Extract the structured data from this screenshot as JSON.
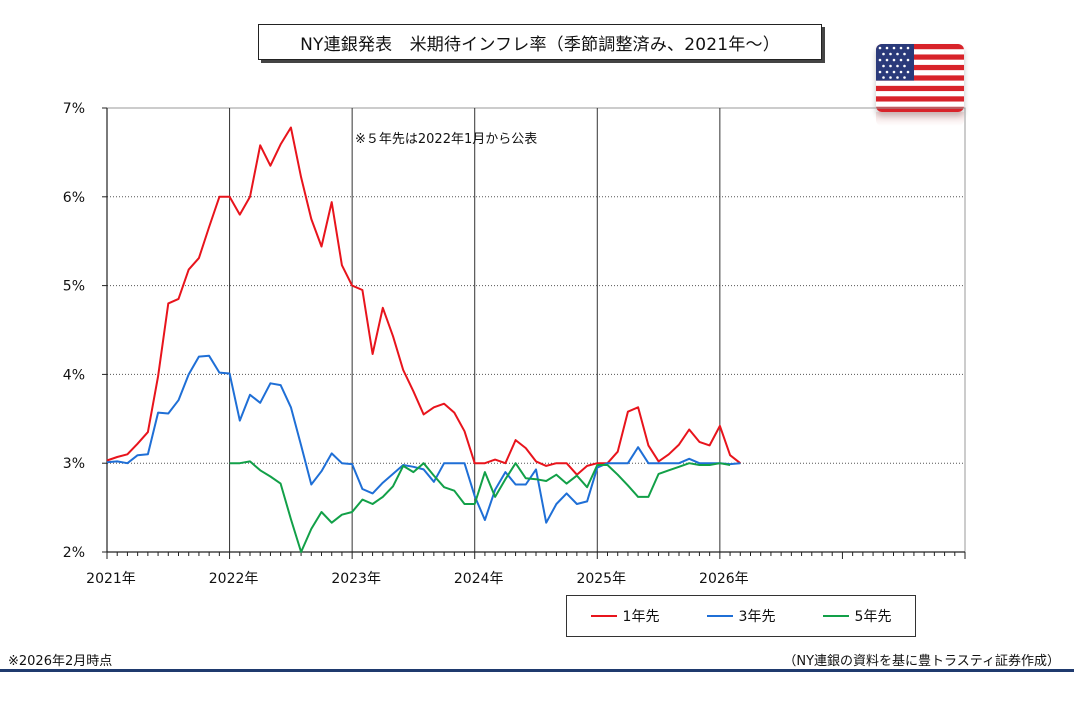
{
  "title": "NY連銀発表　米期待インフレ率（季節調整済み、2021年〜）",
  "note": "※５年先は2022年1月から公表",
  "footer_left": "※2026年2月時点",
  "footer_right": "（NY連銀の資料を基に豊トラスティ証券作成）",
  "flag_icon": "us-flag-icon",
  "chart_data": {
    "type": "line",
    "ylim": [
      2,
      7
    ],
    "y_ticks": [
      "2%",
      "3%",
      "4%",
      "5%",
      "6%",
      "7%"
    ],
    "x_range_months": [
      "2021-01",
      "2027-12"
    ],
    "x_ticks": [
      "2021年",
      "2022年",
      "2023年",
      "2024年",
      "2025年",
      "2026年"
    ],
    "grid": "horizontal dotted at each percent, vertical solid at each year",
    "legend_position": "bottom-right",
    "series": [
      {
        "name": "1年先",
        "color": "#e8141c",
        "start": "2021-01",
        "values": [
          3.03,
          3.07,
          3.1,
          3.22,
          3.35,
          3.98,
          4.8,
          4.85,
          5.18,
          5.31,
          5.66,
          6.0,
          6.0,
          5.8,
          6.0,
          6.58,
          6.35,
          6.59,
          6.78,
          6.22,
          5.75,
          5.44,
          5.94,
          5.23,
          5.0,
          4.95,
          4.23,
          4.75,
          4.43,
          4.05,
          3.81,
          3.55,
          3.63,
          3.67,
          3.57,
          3.36,
          3.0,
          3.0,
          3.04,
          3.0,
          3.26,
          3.17,
          3.02,
          2.97,
          3.0,
          3.0,
          2.87,
          2.97,
          3.0,
          3.0,
          3.13,
          3.58,
          3.63,
          3.2,
          3.02,
          3.1,
          3.21,
          3.38,
          3.24,
          3.2,
          3.42,
          3.09,
          3.0
        ]
      },
      {
        "name": "3年先",
        "color": "#1f6fd6",
        "start": "2021-01",
        "values": [
          3.01,
          3.02,
          3.0,
          3.09,
          3.1,
          3.57,
          3.56,
          3.71,
          4.0,
          4.2,
          4.21,
          4.02,
          4.01,
          3.48,
          3.77,
          3.68,
          3.9,
          3.88,
          3.63,
          3.2,
          2.76,
          2.91,
          3.11,
          3.0,
          2.99,
          2.71,
          2.66,
          2.78,
          2.88,
          2.98,
          2.96,
          2.93,
          2.79,
          3.0,
          3.0,
          3.0,
          2.63,
          2.36,
          2.7,
          2.9,
          2.76,
          2.76,
          2.93,
          2.33,
          2.54,
          2.66,
          2.54,
          2.57,
          2.95,
          3.0,
          3.0,
          3.0,
          3.18,
          3.0,
          3.0,
          3.0,
          3.0,
          3.05,
          3.0,
          3.0,
          3.0,
          2.99,
          3.0
        ]
      },
      {
        "name": "5年先",
        "color": "#12a048",
        "start": "2022-01",
        "values": [
          3.0,
          3.0,
          3.02,
          2.92,
          2.85,
          2.77,
          2.37,
          2.0,
          2.26,
          2.45,
          2.33,
          2.42,
          2.45,
          2.59,
          2.54,
          2.62,
          2.74,
          2.97,
          2.9,
          3.0,
          2.86,
          2.73,
          2.69,
          2.54,
          2.54,
          2.9,
          2.62,
          2.82,
          3.0,
          2.83,
          2.82,
          2.8,
          2.87,
          2.77,
          2.86,
          2.73,
          2.98,
          2.98,
          2.87,
          2.75,
          2.62,
          2.62,
          2.88,
          2.92,
          2.96,
          3.0,
          2.98,
          2.98,
          3.0,
          2.98
        ]
      }
    ]
  }
}
